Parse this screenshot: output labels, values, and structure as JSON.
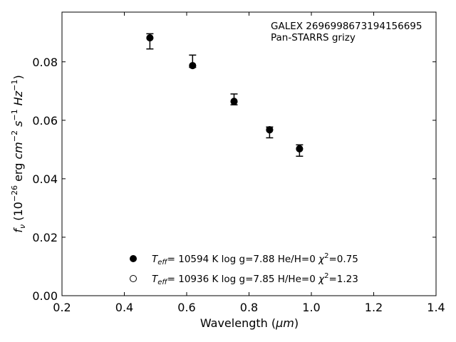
{
  "chart_data": {
    "type": "scatter",
    "title": "",
    "xlabel": "Wavelength (μm)",
    "ylabel": "fν (10⁻²⁶ erg cm⁻² s⁻¹ Hz⁻¹)",
    "xlim": [
      0.2,
      1.4
    ],
    "ylim": [
      0.0,
      0.097
    ],
    "xticks": [
      0.2,
      0.4,
      0.6,
      0.8,
      1.0,
      1.2,
      1.4
    ],
    "xtick_labels": [
      "0.2",
      "0.4",
      "0.6",
      "0.8",
      "1.0",
      "1.2",
      "1.4"
    ],
    "yticks": [
      0.0,
      0.02,
      0.04,
      0.06,
      0.08
    ],
    "ytick_labels": [
      "0.00",
      "0.02",
      "0.04",
      "0.06",
      "0.08"
    ],
    "grid": false,
    "annotation": {
      "line1": "GALEX 2696998673194156695",
      "line2": "Pan-STARRS grizy"
    },
    "observed": {
      "x": [
        0.482,
        0.619,
        0.752,
        0.866,
        0.962
      ],
      "y": [
        0.088,
        0.0785,
        0.067,
        0.057,
        0.05
      ],
      "err_high": [
        0.0016,
        0.0038,
        0.002,
        0.0007,
        0.0016
      ],
      "err_low": [
        0.0036,
        0.0004,
        0.0017,
        0.003,
        0.0023
      ]
    },
    "series": [
      {
        "name": "Teff= 10594 K  log g=7.88  He/H=0  χ²=0.75",
        "marker": "filled",
        "x": [
          0.482,
          0.619,
          0.752,
          0.866,
          0.962
        ],
        "y": [
          0.0882,
          0.0787,
          0.0665,
          0.0568,
          0.0503
        ]
      },
      {
        "name": "Teff= 10936 K  log g=7.85  H/He=0  χ²=1.23",
        "marker": "open",
        "x": [
          0.482,
          0.619,
          0.752,
          0.866,
          0.962
        ],
        "y": [
          0.0882,
          0.0787,
          0.0664,
          0.0567,
          0.0502
        ]
      }
    ],
    "legend": {
      "placement": "lower-center",
      "entries": [
        {
          "teff_val": "= 10594 K",
          "rest": "log g=7.88  He/H=0",
          "chi_val": "=0.75"
        },
        {
          "teff_val": "= 10936 K",
          "rest": "log g=7.85  H/He=0",
          "chi_val": "=1.23"
        }
      ]
    },
    "colors": {
      "marker": "#000000",
      "axes": "#000000"
    }
  }
}
